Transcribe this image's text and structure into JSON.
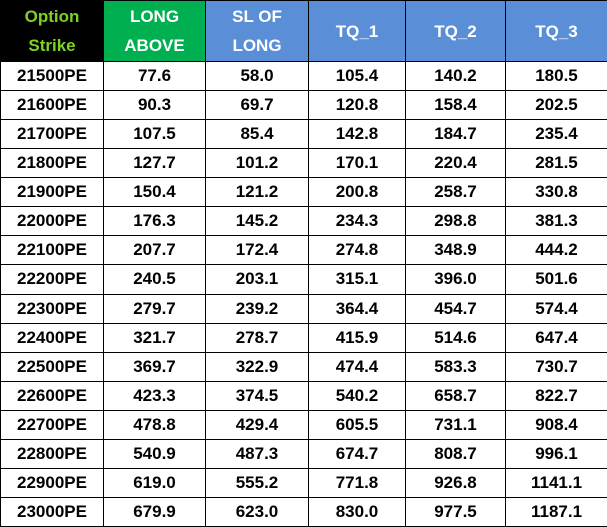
{
  "table": {
    "header": [
      "Option Strike",
      "LONG ABOVE",
      "SL OF LONG",
      "TQ_1",
      "TQ_2",
      "TQ_3"
    ],
    "rows": [
      [
        "21500PE",
        "77.6",
        "58.0",
        "105.4",
        "140.2",
        "180.5"
      ],
      [
        "21600PE",
        "90.3",
        "69.7",
        "120.8",
        "158.4",
        "202.5"
      ],
      [
        "21700PE",
        "107.5",
        "85.4",
        "142.8",
        "184.7",
        "235.4"
      ],
      [
        "21800PE",
        "127.7",
        "101.2",
        "170.1",
        "220.4",
        "281.5"
      ],
      [
        "21900PE",
        "150.4",
        "121.2",
        "200.8",
        "258.7",
        "330.8"
      ],
      [
        "22000PE",
        "176.3",
        "145.2",
        "234.3",
        "298.8",
        "381.3"
      ],
      [
        "22100PE",
        "207.7",
        "172.4",
        "274.8",
        "348.9",
        "444.2"
      ],
      [
        "22200PE",
        "240.5",
        "203.1",
        "315.1",
        "396.0",
        "501.6"
      ],
      [
        "22300PE",
        "279.7",
        "239.2",
        "364.4",
        "454.7",
        "574.4"
      ],
      [
        "22400PE",
        "321.7",
        "278.7",
        "415.9",
        "514.6",
        "647.4"
      ],
      [
        "22500PE",
        "369.7",
        "322.9",
        "474.4",
        "583.3",
        "730.7"
      ],
      [
        "22600PE",
        "423.3",
        "374.5",
        "540.2",
        "658.7",
        "822.7"
      ],
      [
        "22700PE",
        "478.8",
        "429.4",
        "605.5",
        "731.1",
        "908.4"
      ],
      [
        "22800PE",
        "540.9",
        "487.3",
        "674.7",
        "808.7",
        "996.1"
      ],
      [
        "22900PE",
        "619.0",
        "555.2",
        "771.8",
        "926.8",
        "1141.1"
      ],
      [
        "23000PE",
        "679.9",
        "623.0",
        "830.0",
        "977.5",
        "1187.1"
      ]
    ]
  }
}
